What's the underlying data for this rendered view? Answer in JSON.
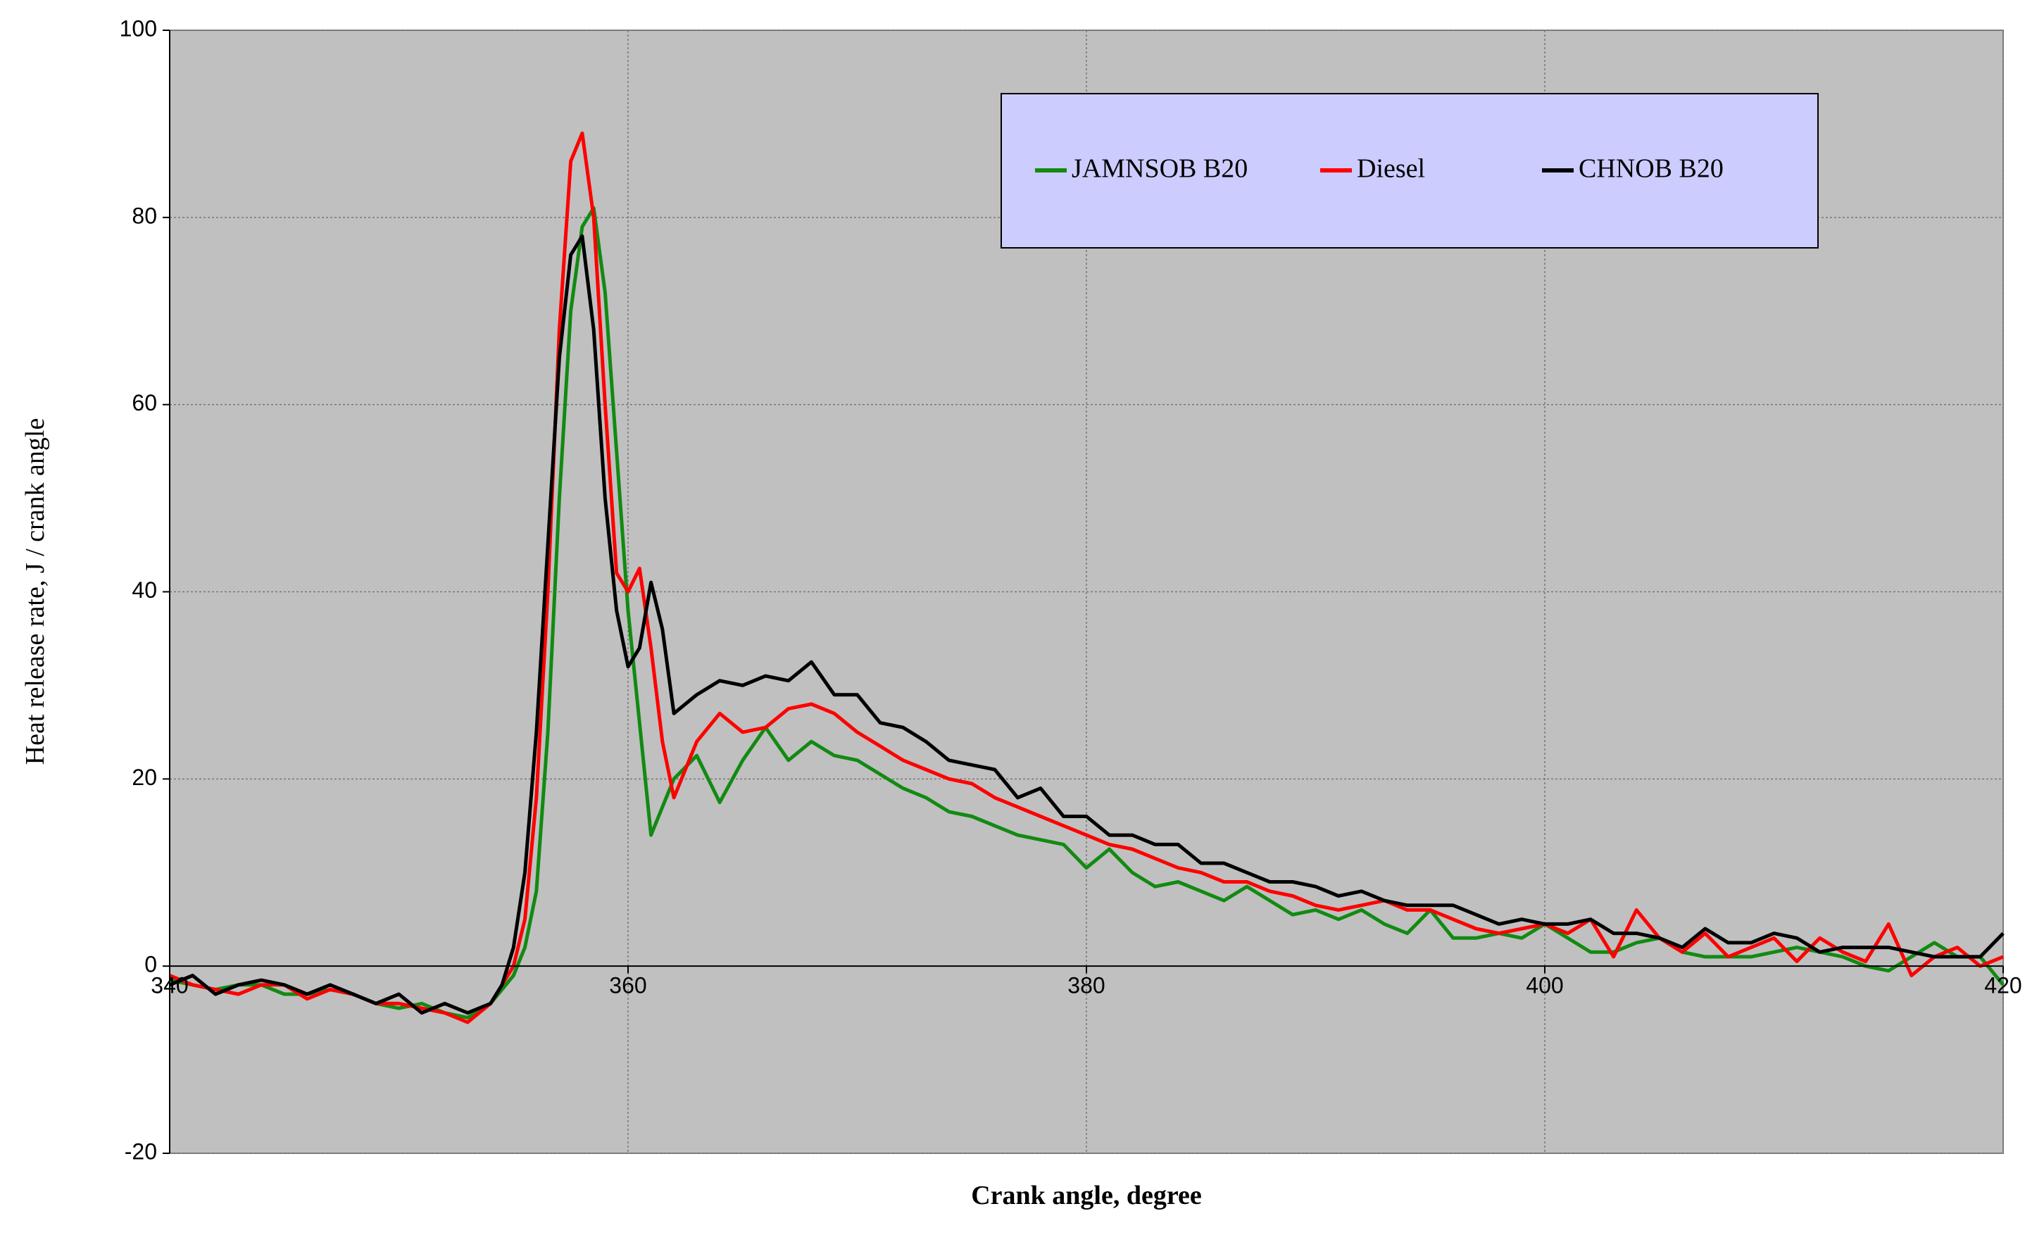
{
  "chart_data": {
    "type": "line",
    "x_label": "Crank angle, degree",
    "y_label": "Heat release rate, J / crank angle",
    "xlim": [
      340,
      420
    ],
    "xticks": [
      340,
      360,
      380,
      400,
      420
    ],
    "ylim": [
      -20,
      100
    ],
    "yticks": [
      -20,
      0,
      20,
      40,
      60,
      80,
      100
    ],
    "grid": true,
    "legend": "upper right",
    "x": [
      340,
      341,
      342,
      343,
      344,
      345,
      346,
      347,
      348,
      349,
      350,
      351,
      352,
      353,
      354,
      354.5,
      355,
      355.5,
      356,
      356.5,
      357,
      357.5,
      358,
      358.5,
      359,
      359.5,
      360,
      360.5,
      361,
      361.5,
      362,
      363,
      364,
      365,
      366,
      367,
      368,
      369,
      370,
      371,
      372,
      373,
      374,
      375,
      376,
      377,
      378,
      379,
      380,
      381,
      382,
      383,
      384,
      385,
      386,
      387,
      388,
      389,
      390,
      391,
      392,
      393,
      394,
      395,
      396,
      397,
      398,
      399,
      400,
      401,
      402,
      403,
      404,
      405,
      406,
      407,
      408,
      409,
      410,
      411,
      412,
      413,
      414,
      415,
      416,
      417,
      418,
      419,
      420
    ],
    "series": [
      {
        "name": "JAMNSOB B20",
        "color": "#128a12",
        "values": [
          -1.5,
          -2,
          -2.5,
          -2,
          -2,
          -3,
          -3,
          -2.5,
          -3,
          -4,
          -4.5,
          -4,
          -5,
          -5.5,
          -4,
          -2.5,
          -1,
          2,
          8,
          25,
          50,
          70,
          79,
          81,
          72,
          55,
          38,
          26,
          14,
          17,
          20,
          22.5,
          17.5,
          22,
          25.5,
          22,
          24,
          22.5,
          22,
          20.5,
          19,
          18,
          16.5,
          16,
          15,
          14,
          13.5,
          13,
          10.5,
          12.5,
          10,
          8.5,
          9,
          8,
          7,
          8.5,
          7,
          5.5,
          6,
          5,
          6,
          4.5,
          3.5,
          6,
          3,
          3,
          3.5,
          3,
          4.5,
          3,
          1.5,
          1.5,
          2.5,
          3,
          1.5,
          1,
          1,
          1,
          1.5,
          2,
          1.5,
          1,
          0,
          -0.5,
          1,
          2.5,
          1,
          1,
          -2
        ]
      },
      {
        "name": "Diesel",
        "color": "#ff0000",
        "values": [
          -1,
          -2,
          -2.5,
          -3,
          -2,
          -2,
          -3.5,
          -2.5,
          -3,
          -4,
          -4,
          -4.5,
          -5,
          -6,
          -4,
          -2,
          0,
          5,
          18,
          40,
          68,
          86,
          89,
          80,
          60,
          42,
          40,
          42.5,
          34,
          24,
          18,
          24,
          27,
          25,
          25.5,
          27.5,
          28,
          27,
          25,
          23.5,
          22,
          21,
          20,
          19.5,
          18,
          17,
          16,
          15,
          14,
          13,
          12.5,
          11.5,
          10.5,
          10,
          9,
          9,
          8,
          7.5,
          6.5,
          6,
          6.5,
          7,
          6,
          6,
          5,
          4,
          3.5,
          4,
          4.5,
          3.5,
          5,
          1,
          6,
          3,
          1.5,
          3.5,
          1,
          2,
          3,
          0.5,
          3,
          1.5,
          0.5,
          4.5,
          -1,
          1,
          2,
          0,
          1
        ]
      },
      {
        "name": "CHNOB B20",
        "color": "#000000",
        "values": [
          -2,
          -1,
          -3,
          -2,
          -1.5,
          -2,
          -3,
          -2,
          -3,
          -4,
          -3,
          -5,
          -4,
          -5,
          -4,
          -2,
          2,
          10,
          25,
          45,
          65,
          76,
          78,
          68,
          50,
          38,
          32,
          34,
          41,
          36,
          27,
          29,
          30.5,
          30,
          31,
          30.5,
          32.5,
          29,
          29,
          26,
          25.5,
          24,
          22,
          21.5,
          21,
          18,
          19,
          16,
          16,
          14,
          14,
          13,
          13,
          11,
          11,
          10,
          9,
          9,
          8.5,
          7.5,
          8,
          7,
          6.5,
          6.5,
          6.5,
          5.5,
          4.5,
          5,
          4.5,
          4.5,
          5,
          3.5,
          3.5,
          3,
          2,
          4,
          2.5,
          2.5,
          3.5,
          3,
          1.5,
          2,
          2,
          2,
          1.5,
          1,
          1,
          1,
          3.5
        ]
      }
    ]
  }
}
